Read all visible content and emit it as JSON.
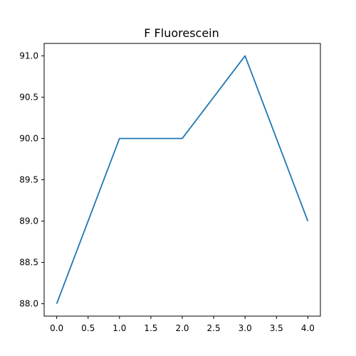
{
  "chart_data": {
    "type": "line",
    "title": "F Fluorescein",
    "xlabel": "",
    "ylabel": "",
    "x": [
      0,
      1,
      2,
      3,
      4
    ],
    "series": [
      {
        "values": [
          88.0,
          90.0,
          90.0,
          91.0,
          89.0
        ],
        "color": "#1f77b4"
      }
    ],
    "xlim": [
      -0.2,
      4.2
    ],
    "ylim": [
      87.85,
      91.15
    ],
    "x_ticks": [
      0.0,
      0.5,
      1.0,
      1.5,
      2.0,
      2.5,
      3.0,
      3.5,
      4.0
    ],
    "x_tick_labels": [
      "0.0",
      "0.5",
      "1.0",
      "1.5",
      "2.0",
      "2.5",
      "3.0",
      "3.5",
      "4.0"
    ],
    "y_ticks": [
      88.0,
      88.5,
      89.0,
      89.5,
      90.0,
      90.5,
      91.0
    ],
    "y_tick_labels": [
      "88.0",
      "88.5",
      "89.0",
      "89.5",
      "90.0",
      "90.5",
      "91.0"
    ],
    "grid": false,
    "legend": "none"
  }
}
